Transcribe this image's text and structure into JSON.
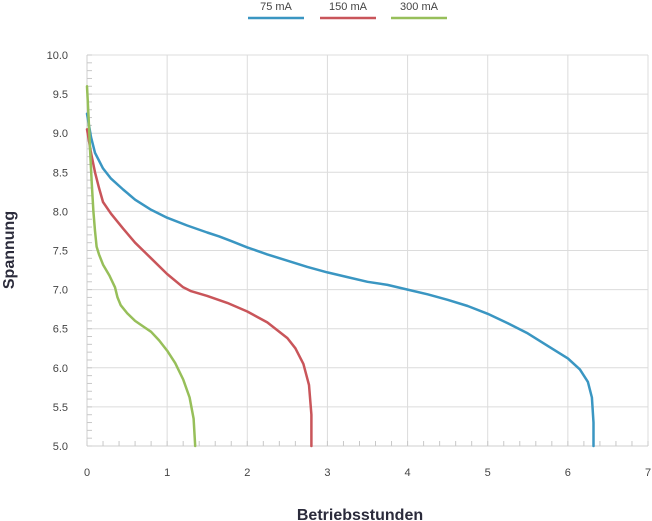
{
  "chart_data": {
    "type": "line",
    "xlabel": "Betriebsstunden",
    "ylabel": "Spannung",
    "xlim": [
      0,
      7
    ],
    "ylim": [
      5.0,
      10.0
    ],
    "x_ticks": [
      "0",
      "1",
      "2",
      "3",
      "4",
      "5",
      "6",
      "7"
    ],
    "y_ticks": [
      "5.0",
      "5.5",
      "6.0",
      "6.5",
      "7.0",
      "7.5",
      "8.0",
      "8.5",
      "9.0",
      "9.5",
      "10.0"
    ],
    "grid": true,
    "legend_position": "top-center",
    "series": [
      {
        "name": "75 mA",
        "color": "#3a96c2",
        "points": [
          [
            0.0,
            9.25
          ],
          [
            0.05,
            8.95
          ],
          [
            0.1,
            8.75
          ],
          [
            0.2,
            8.55
          ],
          [
            0.3,
            8.42
          ],
          [
            0.45,
            8.28
          ],
          [
            0.6,
            8.15
          ],
          [
            0.8,
            8.02
          ],
          [
            1.0,
            7.92
          ],
          [
            1.25,
            7.82
          ],
          [
            1.5,
            7.73
          ],
          [
            1.65,
            7.68
          ],
          [
            1.8,
            7.62
          ],
          [
            2.0,
            7.54
          ],
          [
            2.25,
            7.45
          ],
          [
            2.5,
            7.37
          ],
          [
            2.75,
            7.29
          ],
          [
            3.0,
            7.22
          ],
          [
            3.25,
            7.16
          ],
          [
            3.5,
            7.1
          ],
          [
            3.75,
            7.06
          ],
          [
            4.0,
            7.0
          ],
          [
            4.25,
            6.94
          ],
          [
            4.5,
            6.87
          ],
          [
            4.75,
            6.79
          ],
          [
            5.0,
            6.69
          ],
          [
            5.25,
            6.57
          ],
          [
            5.5,
            6.44
          ],
          [
            5.75,
            6.28
          ],
          [
            6.0,
            6.12
          ],
          [
            6.15,
            5.98
          ],
          [
            6.25,
            5.82
          ],
          [
            6.3,
            5.62
          ],
          [
            6.32,
            5.3
          ],
          [
            6.32,
            5.0
          ]
        ]
      },
      {
        "name": "150 mA",
        "color": "#c9555a",
        "points": [
          [
            0.0,
            9.05
          ],
          [
            0.05,
            8.75
          ],
          [
            0.1,
            8.5
          ],
          [
            0.15,
            8.3
          ],
          [
            0.2,
            8.12
          ],
          [
            0.3,
            7.97
          ],
          [
            0.45,
            7.78
          ],
          [
            0.6,
            7.6
          ],
          [
            0.8,
            7.4
          ],
          [
            1.0,
            7.2
          ],
          [
            1.2,
            7.03
          ],
          [
            1.3,
            6.98
          ],
          [
            1.5,
            6.92
          ],
          [
            1.75,
            6.83
          ],
          [
            2.0,
            6.72
          ],
          [
            2.25,
            6.58
          ],
          [
            2.5,
            6.38
          ],
          [
            2.6,
            6.25
          ],
          [
            2.7,
            6.05
          ],
          [
            2.77,
            5.78
          ],
          [
            2.8,
            5.4
          ],
          [
            2.8,
            5.0
          ]
        ]
      },
      {
        "name": "300 mA",
        "color": "#97bf5a",
        "points": [
          [
            0.0,
            9.6
          ],
          [
            0.02,
            9.2
          ],
          [
            0.04,
            8.75
          ],
          [
            0.06,
            8.35
          ],
          [
            0.08,
            8.0
          ],
          [
            0.1,
            7.75
          ],
          [
            0.12,
            7.55
          ],
          [
            0.15,
            7.45
          ],
          [
            0.2,
            7.32
          ],
          [
            0.28,
            7.18
          ],
          [
            0.35,
            7.03
          ],
          [
            0.38,
            6.9
          ],
          [
            0.42,
            6.8
          ],
          [
            0.5,
            6.7
          ],
          [
            0.6,
            6.6
          ],
          [
            0.7,
            6.53
          ],
          [
            0.8,
            6.46
          ],
          [
            0.9,
            6.35
          ],
          [
            1.0,
            6.22
          ],
          [
            1.1,
            6.06
          ],
          [
            1.2,
            5.85
          ],
          [
            1.28,
            5.62
          ],
          [
            1.33,
            5.35
          ],
          [
            1.35,
            5.0
          ]
        ]
      }
    ]
  }
}
